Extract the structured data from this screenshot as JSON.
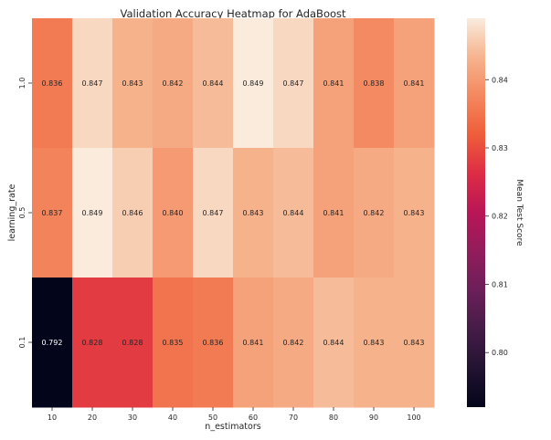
{
  "chart_data": {
    "type": "heatmap",
    "title": "Validation Accuracy Heatmap for AdaBoost",
    "xlabel": "n_estimators",
    "ylabel": "learning_rate",
    "colorbar_label": "Mean Test Score",
    "colormap": "rocket",
    "x_categories": [
      "10",
      "20",
      "30",
      "40",
      "50",
      "60",
      "70",
      "80",
      "90",
      "100"
    ],
    "y_categories": [
      "1.0",
      "0.5",
      "0.1"
    ],
    "values": [
      [
        0.836,
        0.847,
        0.843,
        0.842,
        0.844,
        0.849,
        0.847,
        0.841,
        0.838,
        0.841
      ],
      [
        0.837,
        0.849,
        0.846,
        0.84,
        0.847,
        0.843,
        0.844,
        0.841,
        0.842,
        0.843
      ],
      [
        0.792,
        0.828,
        0.828,
        0.835,
        0.836,
        0.841,
        0.842,
        0.844,
        0.843,
        0.843
      ]
    ],
    "value_labels": [
      [
        "0.836",
        "0.847",
        "0.843",
        "0.842",
        "0.844",
        "0.849",
        "0.847",
        "0.841",
        "0.838",
        "0.841"
      ],
      [
        "0.837",
        "0.849",
        "0.846",
        "0.840",
        "0.847",
        "0.843",
        "0.844",
        "0.841",
        "0.842",
        "0.843"
      ],
      [
        "0.792",
        "0.828",
        "0.828",
        "0.835",
        "0.836",
        "0.841",
        "0.842",
        "0.844",
        "0.843",
        "0.843"
      ]
    ],
    "color_range": [
      0.792,
      0.849
    ],
    "colorbar_ticks": [
      "0.80",
      "0.81",
      "0.82",
      "0.83",
      "0.84"
    ]
  }
}
